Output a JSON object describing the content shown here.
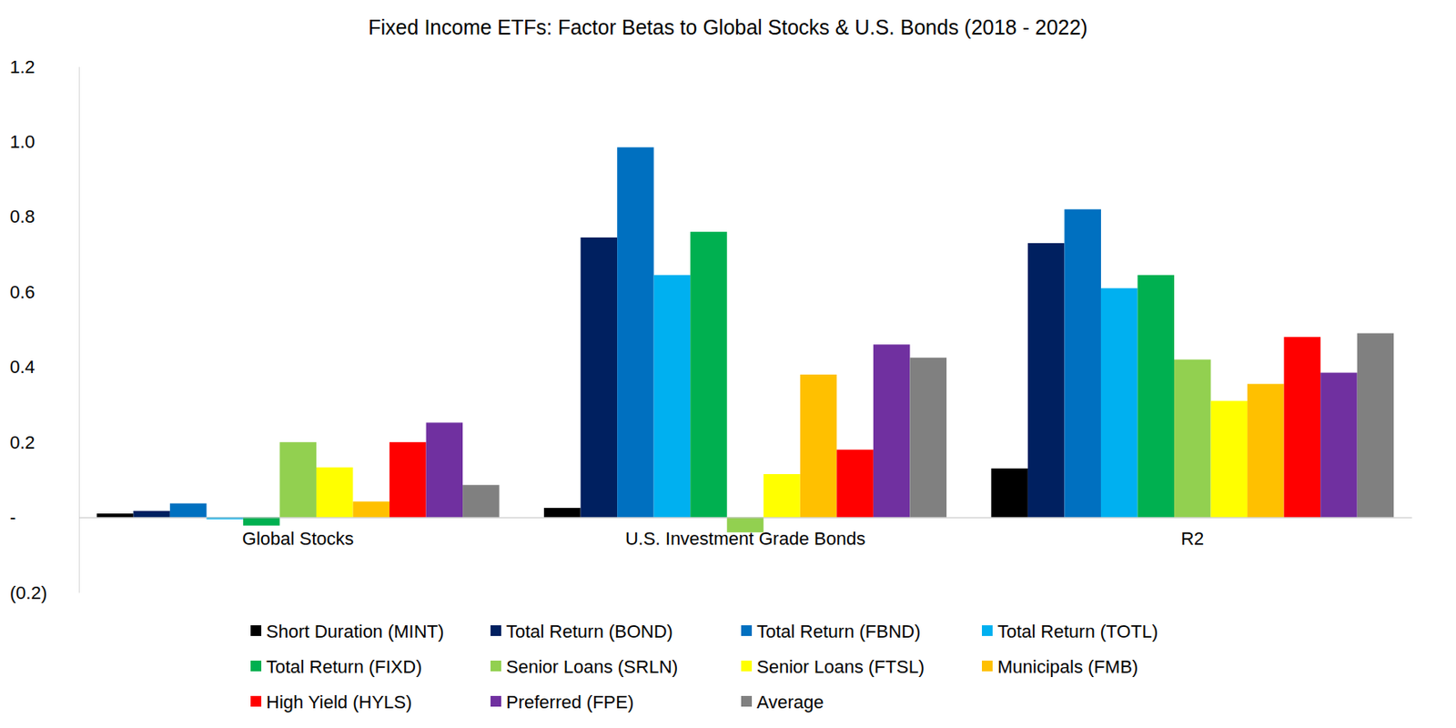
{
  "chart_data": {
    "type": "bar",
    "title": "Fixed Income ETFs: Factor Betas to Global Stocks & U.S. Bonds (2018 - 2022)",
    "categories": [
      "Global Stocks",
      "U.S. Investment Grade Bonds",
      "R2"
    ],
    "series": [
      {
        "name": "Short Duration (MINT)",
        "color": "#000000",
        "values": [
          0.01,
          0.025,
          0.13
        ]
      },
      {
        "name": "Total Return (BOND)",
        "color": "#002060",
        "values": [
          0.017,
          0.745,
          0.73
        ]
      },
      {
        "name": "Total Return (FBND)",
        "color": "#0070C0",
        "values": [
          0.037,
          0.985,
          0.82
        ]
      },
      {
        "name": "Total Return (TOTL)",
        "color": "#00B0F0",
        "values": [
          -0.005,
          0.645,
          0.61
        ]
      },
      {
        "name": "Total Return (FIXD)",
        "color": "#00B050",
        "values": [
          -0.022,
          0.76,
          0.645
        ]
      },
      {
        "name": "Senior Loans (SRLN)",
        "color": "#92D050",
        "values": [
          0.2,
          -0.04,
          0.42
        ]
      },
      {
        "name": "Senior Loans (FTSL)",
        "color": "#FFFF00",
        "values": [
          0.133,
          0.115,
          0.31
        ]
      },
      {
        "name": "Municipals (FMB)",
        "color": "#FFC000",
        "values": [
          0.042,
          0.38,
          0.355
        ]
      },
      {
        "name": "High Yield (HYLS)",
        "color": "#FF0000",
        "values": [
          0.2,
          0.18,
          0.48
        ]
      },
      {
        "name": "Preferred (FPE)",
        "color": "#7030A0",
        "values": [
          0.252,
          0.46,
          0.385
        ]
      },
      {
        "name": "Average",
        "color": "#808080",
        "values": [
          0.086,
          0.425,
          0.49
        ]
      }
    ],
    "ylim": [
      -0.2,
      1.2
    ],
    "yticks": [
      {
        "value": -0.2,
        "label": "(0.2)"
      },
      {
        "value": 0,
        "label": "-"
      },
      0.2,
      0.4,
      0.6,
      0.8,
      {
        "value": 1,
        "label": "1.0"
      },
      1.2
    ],
    "grid": false,
    "legend": "bottom"
  }
}
